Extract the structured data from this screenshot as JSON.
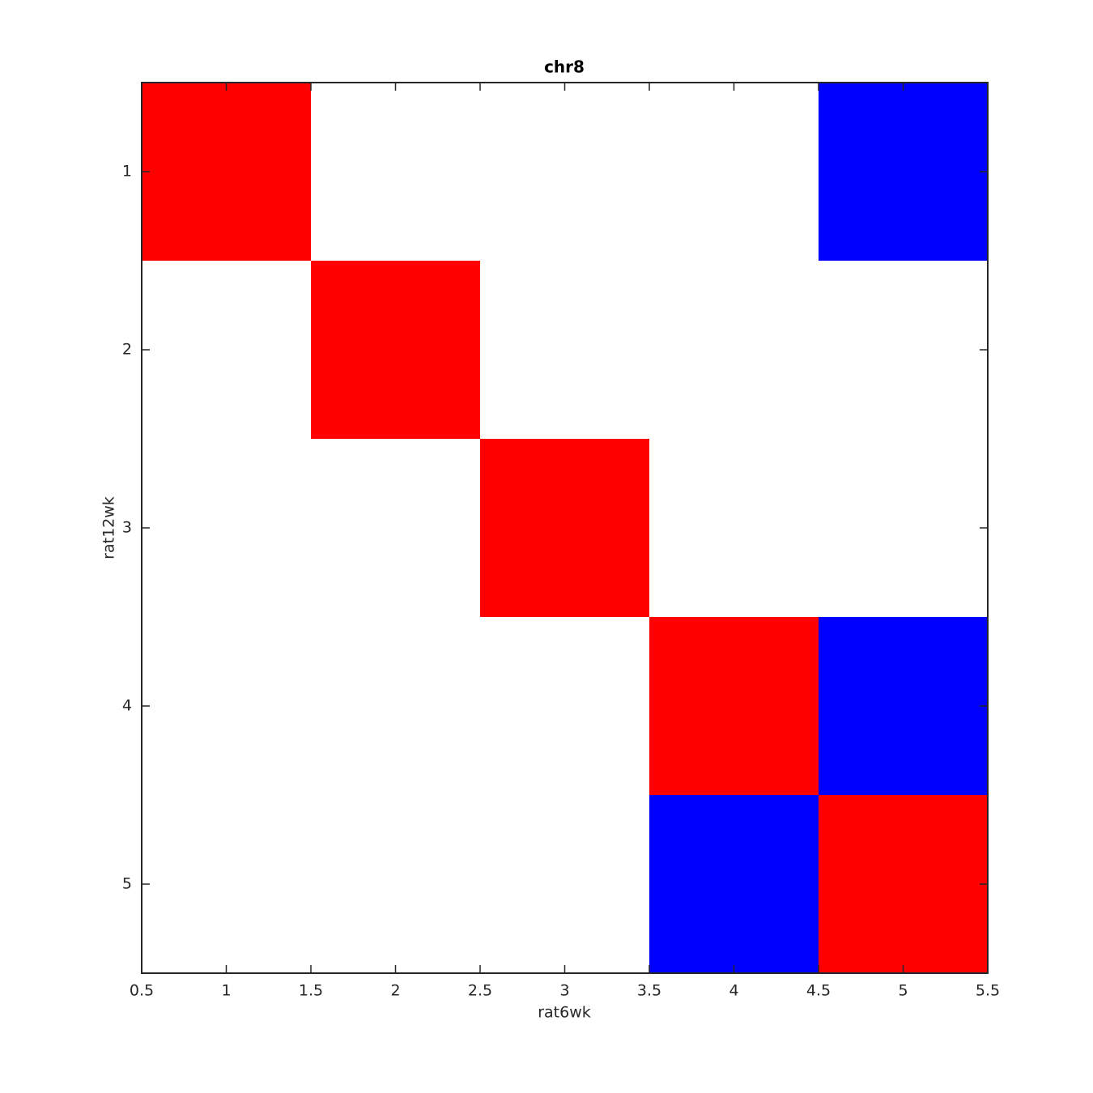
{
  "chart_data": {
    "type": "heatmap",
    "title": "chr8",
    "xlabel": "rat6wk",
    "ylabel": "rat12wk",
    "z": [
      [
        1,
        0,
        0,
        0,
        -1
      ],
      [
        0,
        1,
        0,
        0,
        0
      ],
      [
        0,
        0,
        1,
        0,
        0
      ],
      [
        0,
        0,
        0,
        1,
        -1
      ],
      [
        0,
        0,
        0,
        -1,
        1
      ]
    ],
    "colormap": [
      "#0000ff",
      "#ffffff",
      "#ff0000"
    ],
    "clim": [
      -1,
      1
    ],
    "xlim": [
      0.5,
      5.5
    ],
    "xticks": [
      0.5,
      1,
      1.5,
      2,
      2.5,
      3,
      3.5,
      4,
      4.5,
      5,
      5.5
    ],
    "ylim": [
      0.5,
      5.5
    ],
    "yticks": [
      1,
      2,
      3,
      4,
      5
    ],
    "y_reversed": true
  }
}
